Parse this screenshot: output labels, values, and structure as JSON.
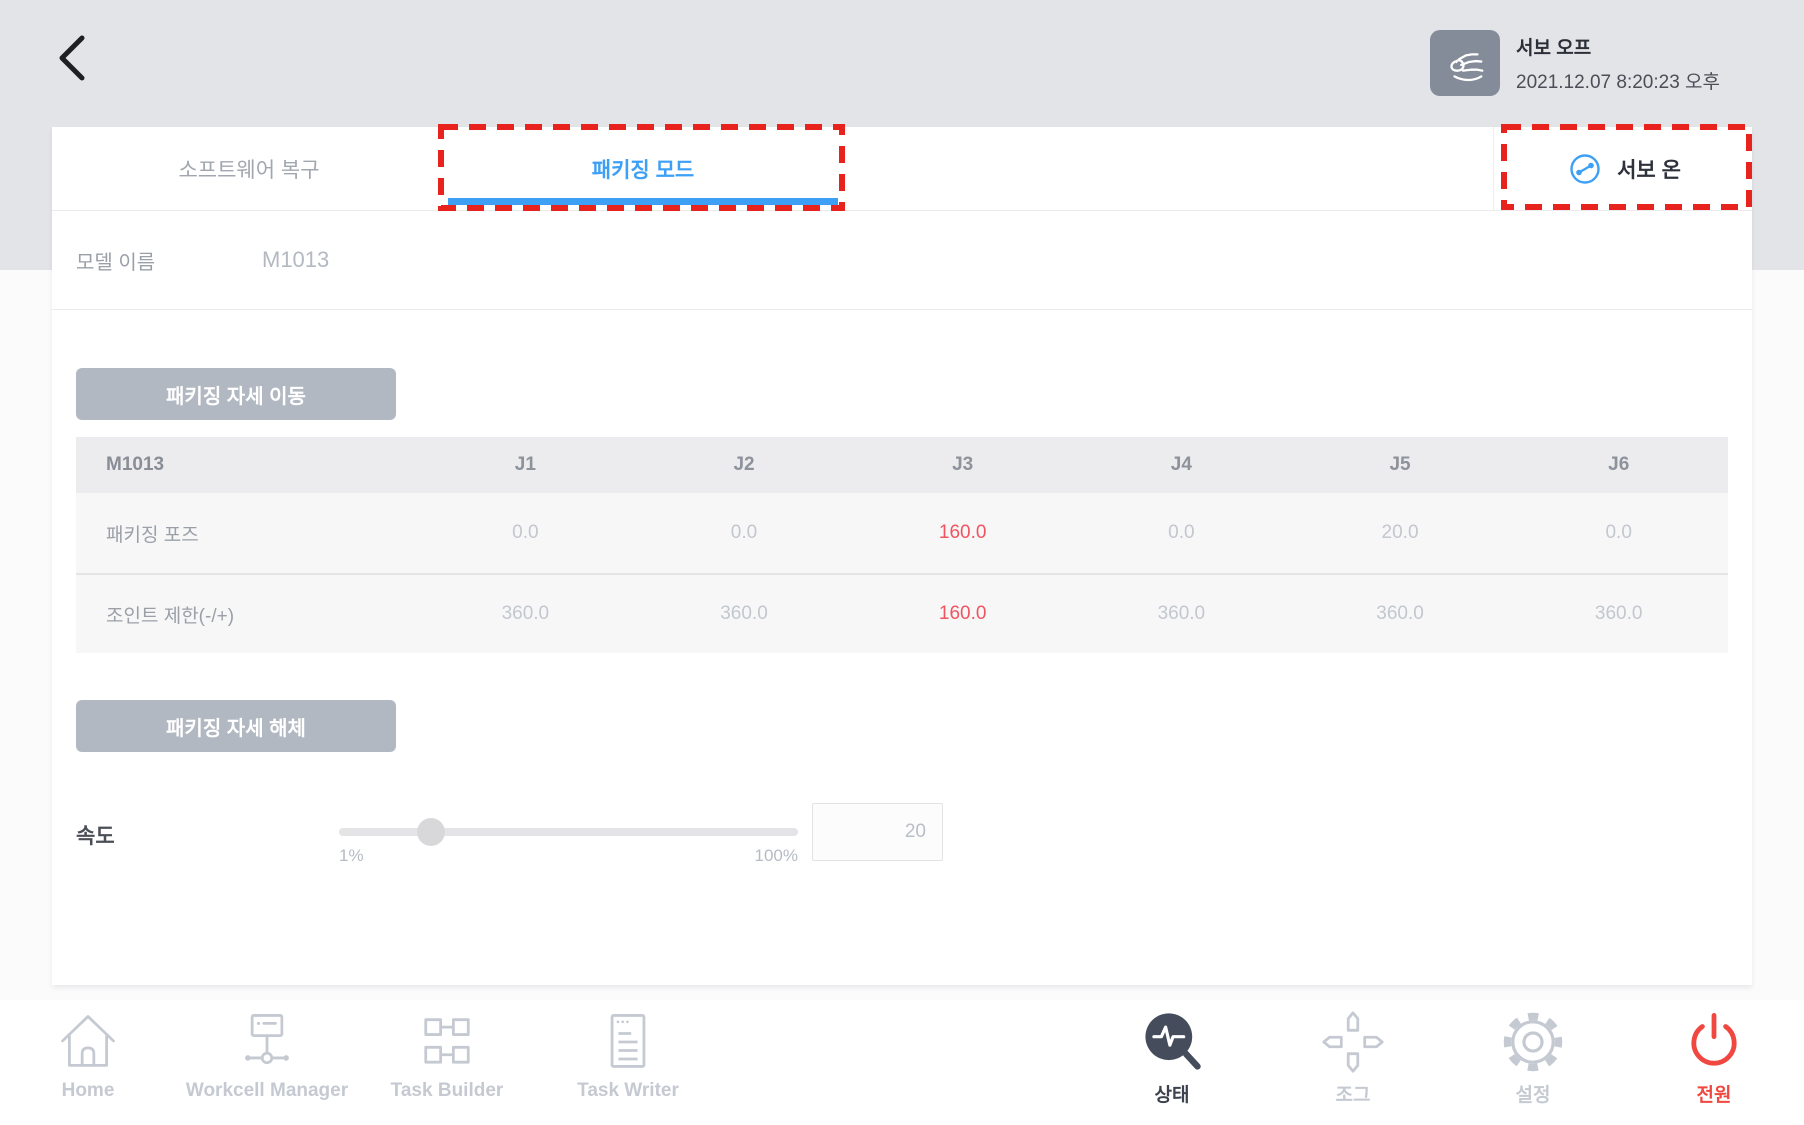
{
  "header": {
    "servo_status": "서보 오프",
    "timestamp": "2021.12.07 8:20:23 오후"
  },
  "tabs": {
    "software_recovery": "소프트웨어 복구",
    "packaging_mode": "패키징 모드",
    "active_tab": "패키징 모드",
    "servo_on": "서보 온"
  },
  "model": {
    "label": "모델 이름",
    "value": "M1013"
  },
  "actions": {
    "move_packaging_pose": "패키징 자세 이동",
    "release_packaging_pose": "패키징 자세 해체"
  },
  "table": {
    "headers": [
      "M1013",
      "J1",
      "J2",
      "J3",
      "J4",
      "J5",
      "J6"
    ],
    "rows": [
      {
        "label": "패키징 포즈",
        "values": [
          "0.0",
          "0.0",
          "160.0",
          "0.0",
          "20.0",
          "0.0"
        ],
        "highlighted_column": "J3"
      },
      {
        "label": "조인트 제한(-/+)",
        "values": [
          "360.0",
          "360.0",
          "160.0",
          "360.0",
          "360.0",
          "360.0"
        ],
        "highlighted_column": "J3"
      }
    ]
  },
  "speed": {
    "label": "속도",
    "min_label": "1%",
    "max_label": "100%",
    "value": "20",
    "percent": 20
  },
  "nav": {
    "items": [
      {
        "label": "Home",
        "icon": "home-icon",
        "active": false
      },
      {
        "label": "Workcell Manager",
        "icon": "workcell-manager-icon",
        "active": false
      },
      {
        "label": "Task Builder",
        "icon": "task-builder-icon",
        "active": false
      },
      {
        "label": "Task Writer",
        "icon": "task-writer-icon",
        "active": false
      },
      {
        "label": "상태",
        "icon": "status-icon",
        "active": true
      },
      {
        "label": "조그",
        "icon": "jog-icon",
        "active": false
      },
      {
        "label": "설정",
        "icon": "settings-icon",
        "active": false
      },
      {
        "label": "전원",
        "icon": "power-icon",
        "active": false
      }
    ]
  },
  "colors": {
    "accent_blue": "#3da0f5",
    "highlight_red": "#e8231d",
    "value_red": "#f2545f",
    "power_red": "#f04840"
  }
}
